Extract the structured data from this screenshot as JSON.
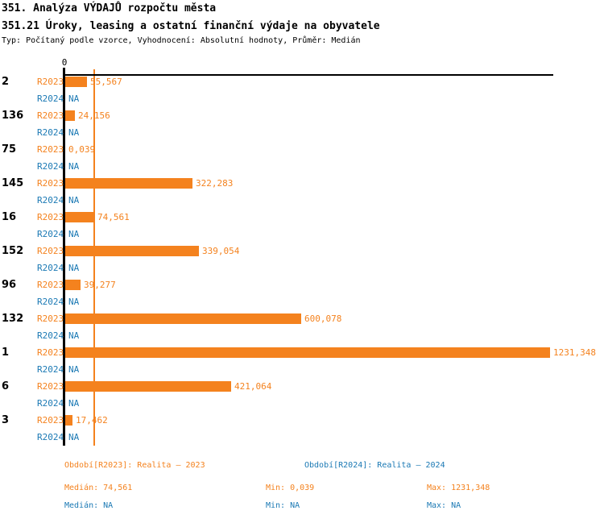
{
  "header": {
    "title": "351. Analýza VÝDAJŮ rozpočtu města",
    "subtitle": "351.21 Úroky, leasing a ostatní finanční výdaje na obyvatele",
    "meta": "Typ: Počítaný podle vzorce, Vyhodnocení: Absolutní hodnoty, Průměr: Medián"
  },
  "chart_data": {
    "type": "bar",
    "orientation": "horizontal",
    "axis_zero_label": "0",
    "xlim": [
      0,
      1231.348
    ],
    "grid": false,
    "categories": [
      "2",
      "136",
      "75",
      "145",
      "16",
      "152",
      "96",
      "132",
      "1",
      "6",
      "3"
    ],
    "series": [
      {
        "name": "R2023",
        "color": "#f4821e",
        "values": [
          55.567,
          24.156,
          0.039,
          322.283,
          74.561,
          339.054,
          39.277,
          600.078,
          1231.348,
          421.064,
          17.462
        ],
        "value_labels": [
          "55,567",
          "24,156",
          "0,039",
          "322,283",
          "74,561",
          "339,054",
          "39,277",
          "600,078",
          "1231,348",
          "421,064",
          "17,462"
        ]
      },
      {
        "name": "R2024",
        "color": "#1b79b4",
        "values": [
          null,
          null,
          null,
          null,
          null,
          null,
          null,
          null,
          null,
          null,
          null
        ],
        "value_labels": [
          "NA",
          "NA",
          "NA",
          "NA",
          "NA",
          "NA",
          "NA",
          "NA",
          "NA",
          "NA",
          "NA"
        ]
      }
    ],
    "median_line": {
      "value": 74.561,
      "color": "#f4821e"
    },
    "stats": {
      "r2023": {
        "median": 74.561,
        "min": 0.039,
        "max": 1231.348
      },
      "r2024": {
        "median": null,
        "min": null,
        "max": null
      }
    }
  },
  "footer": {
    "legend_2023": "Období[R2023]: Realita – 2023",
    "legend_2024": "Období[R2024]: Realita – 2024",
    "stats_2023": {
      "median": "Medián: 74,561",
      "min": "Min: 0,039",
      "max": "Max: 1231,348"
    },
    "stats_2024": {
      "median": "Medián: NA",
      "min": "Min: NA",
      "max": "Max: NA"
    }
  }
}
